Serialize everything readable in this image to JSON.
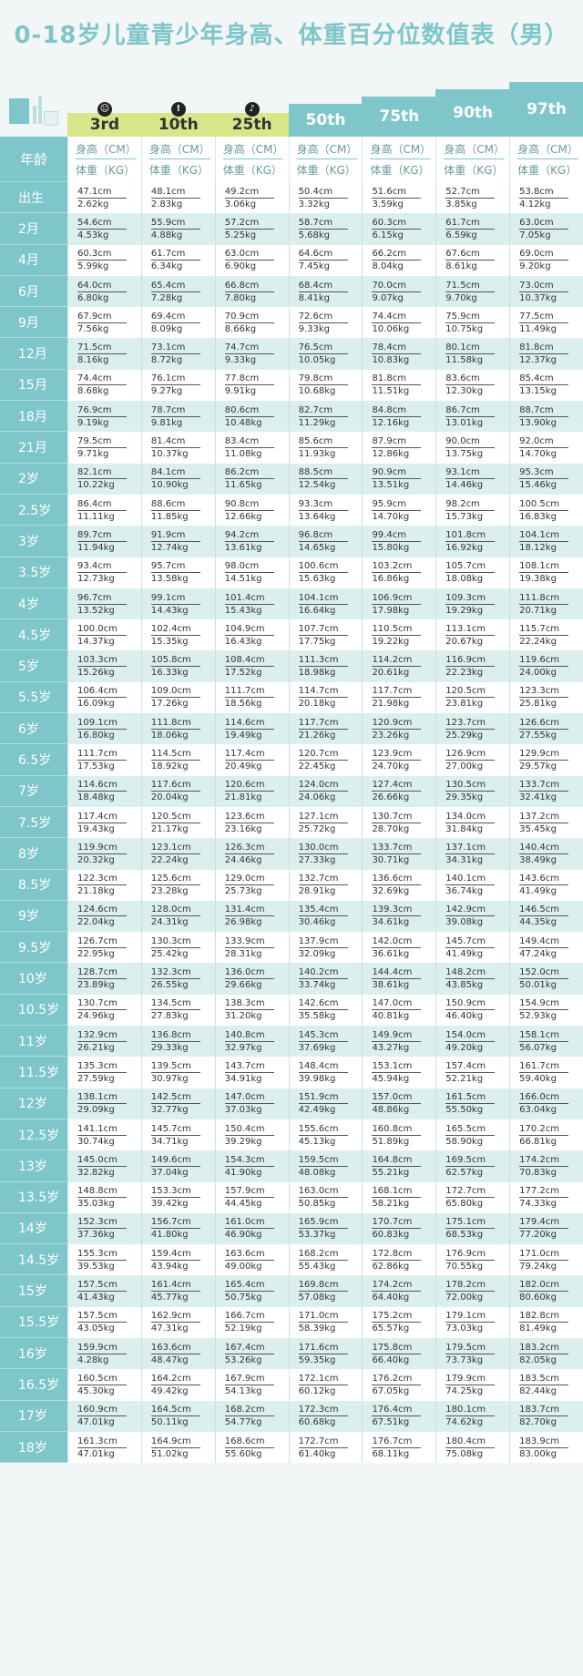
{
  "title": "0-18岁儿童青少年身高、体重百分位数值表（男）",
  "header": {
    "age_label": "年龄",
    "height_unit": "身高（CM）",
    "weight_unit": "体重（KG）",
    "percentiles": [
      "3rd",
      "10th",
      "25th",
      "50th",
      "75th",
      "90th",
      "97th"
    ],
    "tab_colors": [
      "#d8e68a",
      "#d8e68a",
      "#d8e68a",
      "#7ec6c9",
      "#7ec6c9",
      "#7ec6c9",
      "#7ec6c9"
    ]
  },
  "rows": [
    {
      "age": "出生",
      "h": [
        "47.1cm",
        "48.1cm",
        "49.2cm",
        "50.4cm",
        "51.6cm",
        "52.7cm",
        "53.8cm"
      ],
      "w": [
        "2.62kg",
        "2.83kg",
        "3.06kg",
        "3.32kg",
        "3.59kg",
        "3.85kg",
        "4.12kg"
      ]
    },
    {
      "age": "2月",
      "h": [
        "54.6cm",
        "55.9cm",
        "57.2cm",
        "58.7cm",
        "60.3cm",
        "61.7cm",
        "63.0cm"
      ],
      "w": [
        "4.53kg",
        "4.88kg",
        "5.25kg",
        "5.68kg",
        "6.15kg",
        "6.59kg",
        "7.05kg"
      ]
    },
    {
      "age": "4月",
      "h": [
        "60.3cm",
        "61.7cm",
        "63.0cm",
        "64.6cm",
        "66.2cm",
        "67.6cm",
        "69.0cm"
      ],
      "w": [
        "5.99kg",
        "6.34kg",
        "6.90kg",
        "7.45kg",
        "8.04kg",
        "8.61kg",
        "9.20kg"
      ]
    },
    {
      "age": "6月",
      "h": [
        "64.0cm",
        "65.4cm",
        "66.8cm",
        "68.4cm",
        "70.0cm",
        "71.5cm",
        "73.0cm"
      ],
      "w": [
        "6.80kg",
        "7.28kg",
        "7.80kg",
        "8.41kg",
        "9.07kg",
        "9.70kg",
        "10.37kg"
      ]
    },
    {
      "age": "9月",
      "h": [
        "67.9cm",
        "69.4cm",
        "70.9cm",
        "72.6cm",
        "74.4cm",
        "75.9cm",
        "77.5cm"
      ],
      "w": [
        "7.56kg",
        "8.09kg",
        "8.66kg",
        "9.33kg",
        "10.06kg",
        "10.75kg",
        "11.49kg"
      ]
    },
    {
      "age": "12月",
      "h": [
        "71.5cm",
        "73.1cm",
        "74.7cm",
        "76.5cm",
        "78.4cm",
        "80.1cm",
        "81.8cm"
      ],
      "w": [
        "8.16kg",
        "8.72kg",
        "9.33kg",
        "10.05kg",
        "10.83kg",
        "11.58kg",
        "12.37kg"
      ]
    },
    {
      "age": "15月",
      "h": [
        "74.4cm",
        "76.1cm",
        "77.8cm",
        "79.8cm",
        "81.8cm",
        "83.6cm",
        "85.4cm"
      ],
      "w": [
        "8.68kg",
        "9.27kg",
        "9.91kg",
        "10.68kg",
        "11.51kg",
        "12.30kg",
        "13.15kg"
      ]
    },
    {
      "age": "18月",
      "h": [
        "76.9cm",
        "78.7cm",
        "80.6cm",
        "82.7cm",
        "84.8cm",
        "86.7cm",
        "88.7cm"
      ],
      "w": [
        "9.19kg",
        "9.81kg",
        "10.48kg",
        "11.29kg",
        "12.16kg",
        "13.01kg",
        "13.90kg"
      ]
    },
    {
      "age": "21月",
      "h": [
        "79.5cm",
        "81.4cm",
        "83.4cm",
        "85.6cm",
        "87.9cm",
        "90.0cm",
        "92.0cm"
      ],
      "w": [
        "9.71kg",
        "10.37kg",
        "11.08kg",
        "11.93kg",
        "12.86kg",
        "13.75kg",
        "14.70kg"
      ]
    },
    {
      "age": "2岁",
      "h": [
        "82.1cm",
        "84.1cm",
        "86.2cm",
        "88.5cm",
        "90.9cm",
        "93.1cm",
        "95.3cm"
      ],
      "w": [
        "10.22kg",
        "10.90kg",
        "11.65kg",
        "12.54kg",
        "13.51kg",
        "14.46kg",
        "15.46kg"
      ]
    },
    {
      "age": "2.5岁",
      "h": [
        "86.4cm",
        "88.6cm",
        "90.8cm",
        "93.3cm",
        "95.9cm",
        "98.2cm",
        "100.5cm"
      ],
      "w": [
        "11.11kg",
        "11.85kg",
        "12.66kg",
        "13.64kg",
        "14.70kg",
        "15.73kg",
        "16.83kg"
      ]
    },
    {
      "age": "3岁",
      "h": [
        "89.7cm",
        "91.9cm",
        "94.2cm",
        "96.8cm",
        "99.4cm",
        "101.8cm",
        "104.1cm"
      ],
      "w": [
        "11.94kg",
        "12.74kg",
        "13.61kg",
        "14.65kg",
        "15.80kg",
        "16.92kg",
        "18.12kg"
      ]
    },
    {
      "age": "3.5岁",
      "h": [
        "93.4cm",
        "95.7cm",
        "98.0cm",
        "100.6cm",
        "103.2cm",
        "105.7cm",
        "108.1cm"
      ],
      "w": [
        "12.73kg",
        "13.58kg",
        "14.51kg",
        "15.63kg",
        "16.86kg",
        "18.08kg",
        "19.38kg"
      ]
    },
    {
      "age": "4岁",
      "h": [
        "96.7cm",
        "99.1cm",
        "101.4cm",
        "104.1cm",
        "106.9cm",
        "109.3cm",
        "111.8cm"
      ],
      "w": [
        "13.52kg",
        "14.43kg",
        "15.43kg",
        "16.64kg",
        "17.98kg",
        "19.29kg",
        "20.71kg"
      ]
    },
    {
      "age": "4.5岁",
      "h": [
        "100.0cm",
        "102.4cm",
        "104.9cm",
        "107.7cm",
        "110.5cm",
        "113.1cm",
        "115.7cm"
      ],
      "w": [
        "14.37kg",
        "15.35kg",
        "16.43kg",
        "17.75kg",
        "19.22kg",
        "20.67kg",
        "22.24kg"
      ]
    },
    {
      "age": "5岁",
      "h": [
        "103.3cm",
        "105.8cm",
        "108.4cm",
        "111.3cm",
        "114.2cm",
        "116.9cm",
        "119.6cm"
      ],
      "w": [
        "15.26kg",
        "16.33kg",
        "17.52kg",
        "18.98kg",
        "20.61kg",
        "22.23kg",
        "24.00kg"
      ]
    },
    {
      "age": "5.5岁",
      "h": [
        "106.4cm",
        "109.0cm",
        "111.7cm",
        "114.7cm",
        "117.7cm",
        "120.5cm",
        "123.3cm"
      ],
      "w": [
        "16.09kg",
        "17.26kg",
        "18.56kg",
        "20.18kg",
        "21.98kg",
        "23.81kg",
        "25.81kg"
      ]
    },
    {
      "age": "6岁",
      "h": [
        "109.1cm",
        "111.8cm",
        "114.6cm",
        "117.7cm",
        "120.9cm",
        "123.7cm",
        "126.6cm"
      ],
      "w": [
        "16.80kg",
        "18.06kg",
        "19.49kg",
        "21.26kg",
        "23.26kg",
        "25.29kg",
        "27.55kg"
      ]
    },
    {
      "age": "6.5岁",
      "h": [
        "111.7cm",
        "114.5cm",
        "117.4cm",
        "120.7cm",
        "123.9cm",
        "126.9cm",
        "129.9cm"
      ],
      "w": [
        "17.53kg",
        "18.92kg",
        "20.49kg",
        "22.45kg",
        "24.70kg",
        "27.00kg",
        "29.57kg"
      ]
    },
    {
      "age": "7岁",
      "h": [
        "114.6cm",
        "117.6cm",
        "120.6cm",
        "124.0cm",
        "127.4cm",
        "130.5cm",
        "133.7cm"
      ],
      "w": [
        "18.48kg",
        "20.04kg",
        "21.81kg",
        "24.06kg",
        "26.66kg",
        "29.35kg",
        "32.41kg"
      ]
    },
    {
      "age": "7.5岁",
      "h": [
        "117.4cm",
        "120.5cm",
        "123.6cm",
        "127.1cm",
        "130.7cm",
        "134.0cm",
        "137.2cm"
      ],
      "w": [
        "19.43kg",
        "21.17kg",
        "23.16kg",
        "25.72kg",
        "28.70kg",
        "31.84kg",
        "35.45kg"
      ]
    },
    {
      "age": "8岁",
      "h": [
        "119.9cm",
        "123.1cm",
        "126.3cm",
        "130.0cm",
        "133.7cm",
        "137.1cm",
        "140.4cm"
      ],
      "w": [
        "20.32kg",
        "22.24kg",
        "24.46kg",
        "27.33kg",
        "30.71kg",
        "34.31kg",
        "38.49kg"
      ]
    },
    {
      "age": "8.5岁",
      "h": [
        "122.3cm",
        "125.6cm",
        "129.0cm",
        "132.7cm",
        "136.6cm",
        "140.1cm",
        "143.6cm"
      ],
      "w": [
        "21.18kg",
        "23.28kg",
        "25.73kg",
        "28.91kg",
        "32.69kg",
        "36.74kg",
        "41.49kg"
      ]
    },
    {
      "age": "9岁",
      "h": [
        "124.6cm",
        "128.0cm",
        "131.4cm",
        "135.4cm",
        "139.3cm",
        "142.9cm",
        "146.5cm"
      ],
      "w": [
        "22.04kg",
        "24.31kg",
        "26.98kg",
        "30.46kg",
        "34.61kg",
        "39.08kg",
        "44.35kg"
      ]
    },
    {
      "age": "9.5岁",
      "h": [
        "126.7cm",
        "130.3cm",
        "133.9cm",
        "137.9cm",
        "142.0cm",
        "145.7cm",
        "149.4cm"
      ],
      "w": [
        "22.95kg",
        "25.42kg",
        "28.31kg",
        "32.09kg",
        "36.61kg",
        "41.49kg",
        "47.24kg"
      ]
    },
    {
      "age": "10岁",
      "h": [
        "128.7cm",
        "132.3cm",
        "136.0cm",
        "140.2cm",
        "144.4cm",
        "148.2cm",
        "152.0cm"
      ],
      "w": [
        "23.89kg",
        "26.55kg",
        "29.66kg",
        "33.74kg",
        "38.61kg",
        "43.85kg",
        "50.01kg"
      ]
    },
    {
      "age": "10.5岁",
      "h": [
        "130.7cm",
        "134.5cm",
        "138.3cm",
        "142.6cm",
        "147.0cm",
        "150.9cm",
        "154.9cm"
      ],
      "w": [
        "24.96kg",
        "27.83kg",
        "31.20kg",
        "35.58kg",
        "40.81kg",
        "46.40kg",
        "52.93kg"
      ]
    },
    {
      "age": "11岁",
      "h": [
        "132.9cm",
        "136.8cm",
        "140.8cm",
        "145.3cm",
        "149.9cm",
        "154.0cm",
        "158.1cm"
      ],
      "w": [
        "26.21kg",
        "29.33kg",
        "32.97kg",
        "37.69kg",
        "43.27kg",
        "49.20kg",
        "56.07kg"
      ]
    },
    {
      "age": "11.5岁",
      "h": [
        "135.3cm",
        "139.5cm",
        "143.7cm",
        "148.4cm",
        "153.1cm",
        "157.4cm",
        "161.7cm"
      ],
      "w": [
        "27.59kg",
        "30.97kg",
        "34.91kg",
        "39.98kg",
        "45.94kg",
        "52.21kg",
        "59.40kg"
      ]
    },
    {
      "age": "12岁",
      "h": [
        "138.1cm",
        "142.5cm",
        "147.0cm",
        "151.9cm",
        "157.0cm",
        "161.5cm",
        "166.0cm"
      ],
      "w": [
        "29.09kg",
        "32.77kg",
        "37.03kg",
        "42.49kg",
        "48.86kg",
        "55.50kg",
        "63.04kg"
      ]
    },
    {
      "age": "12.5岁",
      "h": [
        "141.1cm",
        "145.7cm",
        "150.4cm",
        "155.6cm",
        "160.8cm",
        "165.5cm",
        "170.2cm"
      ],
      "w": [
        "30.74kg",
        "34.71kg",
        "39.29kg",
        "45.13kg",
        "51.89kg",
        "58.90kg",
        "66.81kg"
      ]
    },
    {
      "age": "13岁",
      "h": [
        "145.0cm",
        "149.6cm",
        "154.3cm",
        "159.5cm",
        "164.8cm",
        "169.5cm",
        "174.2cm"
      ],
      "w": [
        "32.82kg",
        "37.04kg",
        "41.90kg",
        "48.08kg",
        "55.21kg",
        "62.57kg",
        "70.83kg"
      ]
    },
    {
      "age": "13.5岁",
      "h": [
        "148.8cm",
        "153.3cm",
        "157.9cm",
        "163.0cm",
        "168.1cm",
        "172.7cm",
        "177.2cm"
      ],
      "w": [
        "35.03kg",
        "39.42kg",
        "44.45kg",
        "50.85kg",
        "58.21kg",
        "65.80kg",
        "74.33kg"
      ]
    },
    {
      "age": "14岁",
      "h": [
        "152.3cm",
        "156.7cm",
        "161.0cm",
        "165.9cm",
        "170.7cm",
        "175.1cm",
        "179.4cm"
      ],
      "w": [
        "37.36kg",
        "41.80kg",
        "46.90kg",
        "53.37kg",
        "60.83kg",
        "68.53kg",
        "77.20kg"
      ]
    },
    {
      "age": "14.5岁",
      "h": [
        "155.3cm",
        "159.4cm",
        "163.6cm",
        "168.2cm",
        "172.8cm",
        "176.9cm",
        "171.0cm"
      ],
      "w": [
        "39.53kg",
        "43.94kg",
        "49.00kg",
        "55.43kg",
        "62.86kg",
        "70.55kg",
        "79.24kg"
      ]
    },
    {
      "age": "15岁",
      "h": [
        "157.5cm",
        "161.4cm",
        "165.4cm",
        "169.8cm",
        "174.2cm",
        "178.2cm",
        "182.0cm"
      ],
      "w": [
        "41.43kg",
        "45.77kg",
        "50.75kg",
        "57.08kg",
        "64.40kg",
        "72.00kg",
        "80.60kg"
      ]
    },
    {
      "age": "15.5岁",
      "h": [
        "157.5cm",
        "162.9cm",
        "166.7cm",
        "171.0cm",
        "175.2cm",
        "179.1cm",
        "182.8cm"
      ],
      "w": [
        "43.05kg",
        "47.31kg",
        "52.19kg",
        "58.39kg",
        "65.57kg",
        "73.03kg",
        "81.49kg"
      ]
    },
    {
      "age": "16岁",
      "h": [
        "159.9cm",
        "163.6cm",
        "167.4cm",
        "171.6cm",
        "175.8cm",
        "179.5cm",
        "183.2cm"
      ],
      "w": [
        "4.28kg",
        "48.47kg",
        "53.26kg",
        "59.35kg",
        "66.40kg",
        "73.73kg",
        "82.05kg"
      ]
    },
    {
      "age": "16.5岁",
      "h": [
        "160.5cm",
        "164.2cm",
        "167.9cm",
        "172.1cm",
        "176.2cm",
        "179.9cm",
        "183.5cm"
      ],
      "w": [
        "45.30kg",
        "49.42kg",
        "54.13kg",
        "60.12kg",
        "67.05kg",
        "74.25kg",
        "82.44kg"
      ]
    },
    {
      "age": "17岁",
      "h": [
        "160.9cm",
        "164.5cm",
        "168.2cm",
        "172.3cm",
        "176.4cm",
        "180.1cm",
        "183.7cm"
      ],
      "w": [
        "47.01kg",
        "50.11kg",
        "54.77kg",
        "60.68kg",
        "67.51kg",
        "74.62kg",
        "82.70kg"
      ]
    },
    {
      "age": "18岁",
      "h": [
        "161.3cm",
        "164.9cm",
        "168.6cm",
        "172.7cm",
        "176.7cm",
        "180.4cm",
        "183.9cm"
      ],
      "w": [
        "47.01kg",
        "51.02kg",
        "55.60kg",
        "61.40kg",
        "68.11kg",
        "75.08kg",
        "83.00kg"
      ]
    }
  ]
}
